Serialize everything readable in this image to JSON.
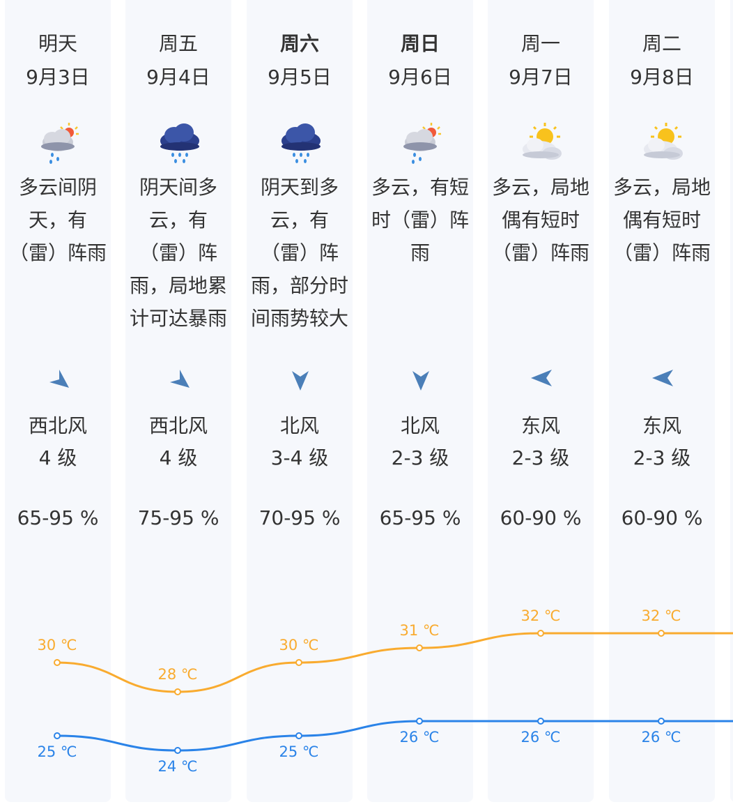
{
  "days": [
    {
      "day": "明天",
      "date": "9月3日",
      "bold": false,
      "icon": "partly-cloudy-rain-icon",
      "weather": "多云间阴天，有（雷）阵雨",
      "wind_dir": "西北风",
      "wind_level": "4 级",
      "wind_arrow": "arrow-southeast-icon",
      "humidity": "65-95 %"
    },
    {
      "day": "周五",
      "date": "9月4日",
      "bold": false,
      "icon": "overcast-rain-icon",
      "weather": "阴天间多云，有（雷）阵雨，局地累计可达暴雨",
      "wind_dir": "西北风",
      "wind_level": "4 级",
      "wind_arrow": "arrow-southeast-icon",
      "humidity": "75-95 %"
    },
    {
      "day": "周六",
      "date": "9月5日",
      "bold": true,
      "icon": "overcast-rain-icon",
      "weather": "阴天到多云，有（雷）阵雨，部分时间雨势较大",
      "wind_dir": "北风",
      "wind_level": "3-4 级",
      "wind_arrow": "arrow-south-icon",
      "humidity": "70-95 %"
    },
    {
      "day": "周日",
      "date": "9月6日",
      "bold": true,
      "icon": "partly-cloudy-rain-icon",
      "weather": "多云，有短时（雷）阵雨",
      "wind_dir": "北风",
      "wind_level": "2-3 级",
      "wind_arrow": "arrow-south-icon",
      "humidity": "65-95 %"
    },
    {
      "day": "周一",
      "date": "9月7日",
      "bold": false,
      "icon": "sun-behind-clouds-icon",
      "weather": "多云，局地偶有短时（雷）阵雨",
      "wind_dir": "东风",
      "wind_level": "2-3 级",
      "wind_arrow": "arrow-west-icon",
      "humidity": "60-90 %"
    },
    {
      "day": "周二",
      "date": "9月8日",
      "bold": false,
      "icon": "sun-behind-clouds-icon",
      "weather": "多云，局地偶有短时（雷）阵雨",
      "wind_dir": "东风",
      "wind_level": "2-3 级",
      "wind_arrow": "arrow-west-icon",
      "humidity": "60-90 %"
    }
  ],
  "chart_data": {
    "type": "line",
    "categories": [
      "明天",
      "周五",
      "周六",
      "周日",
      "周一",
      "周二"
    ],
    "series": [
      {
        "values": [
          30,
          28,
          30,
          31,
          32,
          32
        ],
        "labels": [
          "30 ℃",
          "28 ℃",
          "30 ℃",
          "31 ℃",
          "32 ℃",
          "32 ℃"
        ],
        "color": "#f9ab2f"
      },
      {
        "values": [
          25,
          24,
          25,
          26,
          26,
          26
        ],
        "labels": [
          "25 ℃",
          "24 ℃",
          "25 ℃",
          "26 ℃",
          "26 ℃",
          "26 ℃"
        ],
        "color": "#2a83e8"
      }
    ],
    "grid": false,
    "legend": "none"
  }
}
